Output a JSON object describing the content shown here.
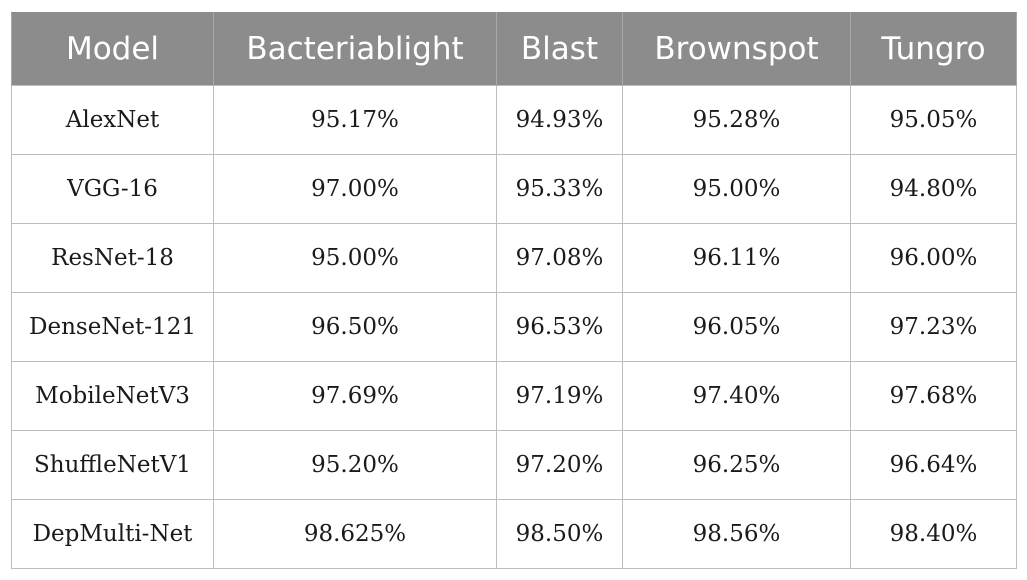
{
  "table": {
    "headers": [
      "Model",
      "Bacteriablight",
      "Blast",
      "Brownspot",
      "Tungro"
    ],
    "rows": [
      [
        "AlexNet",
        "95.17%",
        "94.93%",
        "95.28%",
        "95.05%"
      ],
      [
        "VGG-16",
        "97.00%",
        "95.33%",
        "95.00%",
        "94.80%"
      ],
      [
        "ResNet-18",
        "95.00%",
        "97.08%",
        "96.11%",
        "96.00%"
      ],
      [
        "DenseNet-121",
        "96.50%",
        "96.53%",
        "96.05%",
        "97.23%"
      ],
      [
        "MobileNetV3",
        "97.69%",
        "97.19%",
        "97.40%",
        "97.68%"
      ],
      [
        "ShuffleNetV1",
        "95.20%",
        "97.20%",
        "96.25%",
        "96.64%"
      ],
      [
        "DepMulti-Net",
        "98.625%",
        "98.50%",
        "98.56%",
        "98.40%"
      ]
    ]
  },
  "colors": {
    "header_background": "#8c8c8c",
    "header_text": "#ffffff",
    "grid_line": "#bdbdbd",
    "cell_text": "#1a1a1a"
  }
}
